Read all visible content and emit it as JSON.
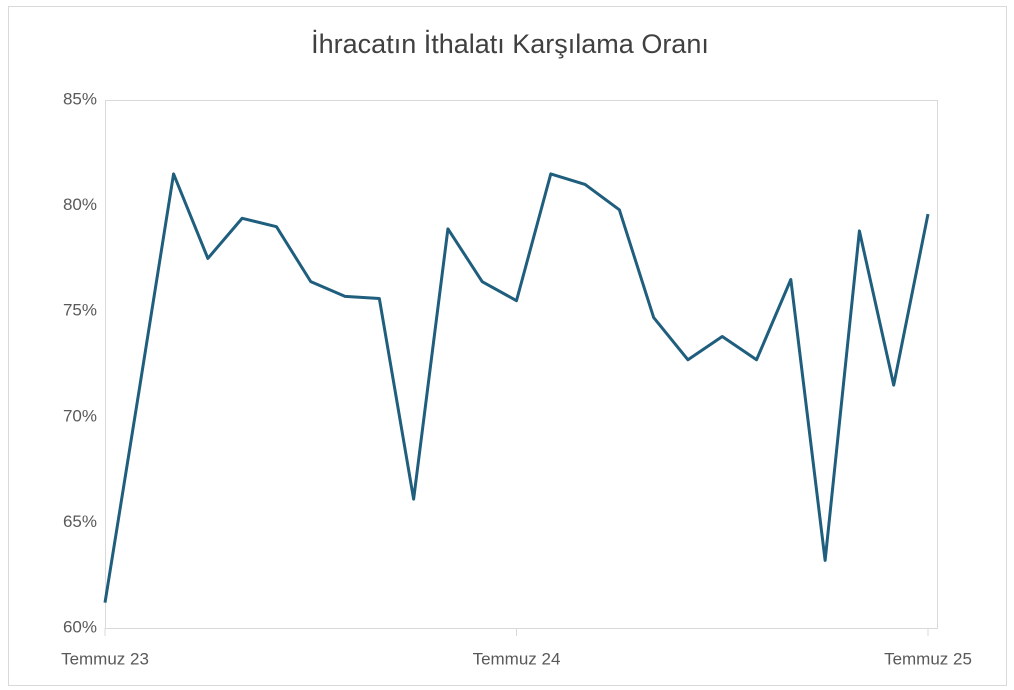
{
  "chart_data": {
    "type": "line",
    "title": "İhracatın İthalatı Karşılama Oranı",
    "categories": [
      "Temmuz 23",
      null,
      null,
      null,
      null,
      null,
      null,
      null,
      null,
      null,
      null,
      null,
      "Temmuz 24",
      null,
      null,
      null,
      null,
      null,
      null,
      null,
      null,
      null,
      null,
      null,
      "Temmuz 25"
    ],
    "series": [
      {
        "color": "#1f5e7d",
        "values": [
          61.2,
          71.3,
          81.5,
          77.5,
          79.4,
          79.0,
          76.4,
          75.7,
          75.6,
          66.1,
          78.9,
          76.4,
          75.5,
          81.5,
          81.0,
          79.8,
          74.7,
          72.7,
          73.8,
          72.7,
          76.5,
          63.2,
          78.8,
          71.5,
          79.6
        ]
      }
    ],
    "ylim": [
      60,
      85
    ],
    "yticks": [
      {
        "value": 60,
        "label": "60%"
      },
      {
        "value": 65,
        "label": "65%"
      },
      {
        "value": 70,
        "label": "70%"
      },
      {
        "value": 75,
        "label": "75%"
      },
      {
        "value": 80,
        "label": "80%"
      },
      {
        "value": 85,
        "label": "85%"
      }
    ],
    "grid": false
  }
}
